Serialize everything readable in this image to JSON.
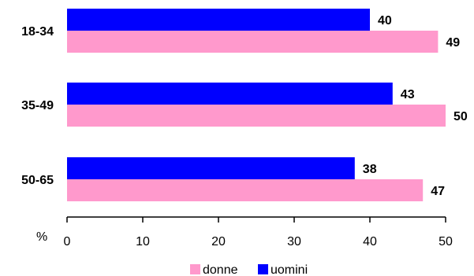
{
  "chart_data": {
    "type": "bar",
    "orientation": "horizontal",
    "categories": [
      "18-34",
      "35-49",
      "50-65"
    ],
    "series": [
      {
        "name": "uomini",
        "values": [
          40,
          43,
          38
        ],
        "color": "#0000ff"
      },
      {
        "name": "donne",
        "values": [
          49,
          50,
          47
        ],
        "color": "#ff99cc"
      }
    ],
    "xlim": [
      0,
      50
    ],
    "xticks": [
      0,
      10,
      20,
      30,
      40,
      50
    ],
    "xlabel": "%",
    "grid": false,
    "legend_position": "bottom",
    "legend_order": [
      "donne",
      "uomini"
    ]
  }
}
